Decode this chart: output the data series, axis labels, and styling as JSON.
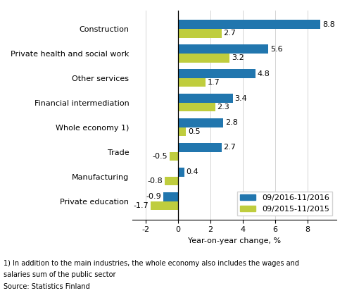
{
  "categories": [
    "Construction",
    "Private health and social work",
    "Other services",
    "Financial intermediation",
    "Whole economy 1)",
    "Trade",
    "Manufacturing",
    "Private education"
  ],
  "values_2016": [
    8.8,
    5.6,
    4.8,
    3.4,
    2.8,
    2.7,
    0.4,
    -0.9
  ],
  "values_2015": [
    2.7,
    3.2,
    1.7,
    2.3,
    0.5,
    -0.5,
    -0.8,
    -1.7
  ],
  "color_2016": "#2176ae",
  "color_2015": "#bfcd3e",
  "xlabel": "Year-on-year change, %",
  "legend_2016": "09/2016-11/2016",
  "legend_2015": "09/2015-11/2015",
  "xlim": [
    -2.8,
    9.8
  ],
  "xticks": [
    -2,
    0,
    2,
    4,
    6,
    8
  ],
  "footnote1": "1) In addition to the main industries, the whole economy also includes the wages and",
  "footnote2": "salaries sum of the public sector",
  "footnote3": "Source: Statistics Finland",
  "bar_height": 0.36,
  "label_fontsize": 8.0,
  "tick_fontsize": 8.0,
  "legend_fontsize": 8.0,
  "annot_fontsize": 8.0
}
